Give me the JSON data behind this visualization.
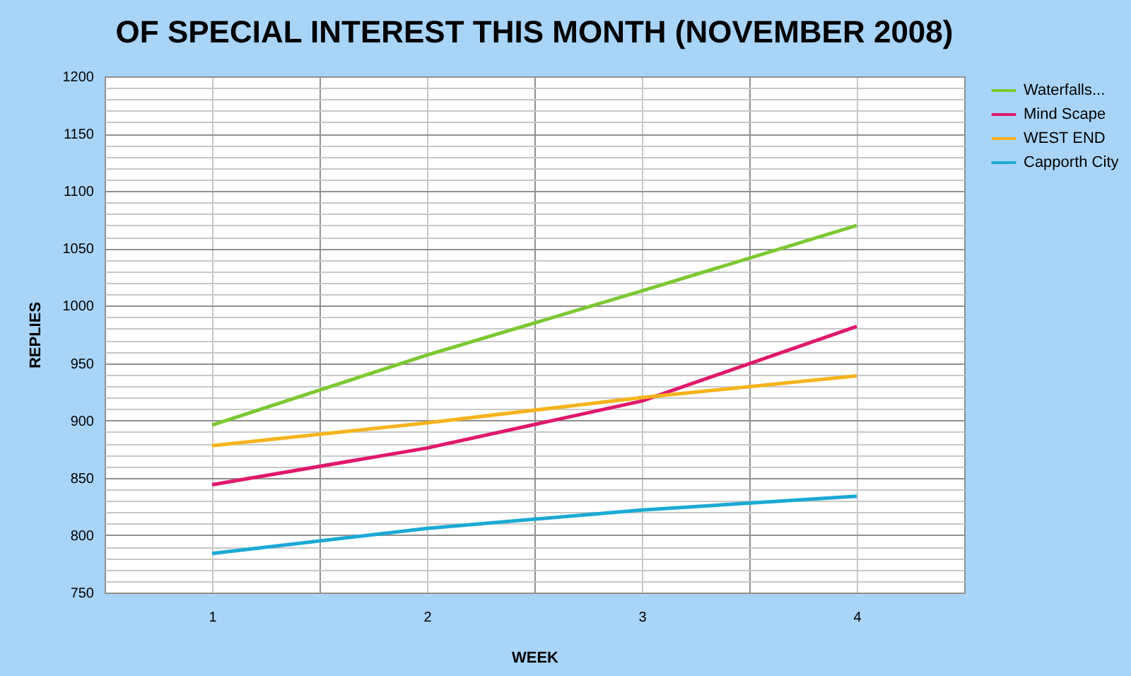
{
  "chart_data": {
    "type": "line",
    "title": "OF SPECIAL INTEREST THIS MONTH (NOVEMBER 2008)",
    "xlabel": "WEEK",
    "ylabel": "REPLIES",
    "x": [
      1,
      2,
      3,
      4
    ],
    "xlim": [
      0.5,
      4.5
    ],
    "xticks": [
      {
        "value": 0.5,
        "label": null
      },
      1,
      {
        "value": 1.5,
        "label": null
      },
      2,
      {
        "value": 2.5,
        "label": null
      },
      3,
      {
        "value": 3.5,
        "label": null
      },
      4,
      {
        "value": 4.5,
        "label": null
      }
    ],
    "ylim": [
      750,
      1200
    ],
    "yticks": [
      750,
      {
        "value": 760,
        "label": null
      },
      {
        "value": 770,
        "label": null
      },
      {
        "value": 780,
        "label": null
      },
      {
        "value": 790,
        "label": null
      },
      800,
      {
        "value": 810,
        "label": null
      },
      {
        "value": 820,
        "label": null
      },
      {
        "value": 830,
        "label": null
      },
      {
        "value": 840,
        "label": null
      },
      850,
      {
        "value": 860,
        "label": null
      },
      {
        "value": 870,
        "label": null
      },
      {
        "value": 880,
        "label": null
      },
      {
        "value": 890,
        "label": null
      },
      900,
      {
        "value": 910,
        "label": null
      },
      {
        "value": 920,
        "label": null
      },
      {
        "value": 930,
        "label": null
      },
      {
        "value": 940,
        "label": null
      },
      950,
      {
        "value": 960,
        "label": null
      },
      {
        "value": 970,
        "label": null
      },
      {
        "value": 980,
        "label": null
      },
      {
        "value": 990,
        "label": null
      },
      1000,
      {
        "value": 1010,
        "label": null
      },
      {
        "value": 1020,
        "label": null
      },
      {
        "value": 1030,
        "label": null
      },
      {
        "value": 1040,
        "label": null
      },
      1050,
      {
        "value": 1060,
        "label": null
      },
      {
        "value": 1070,
        "label": null
      },
      {
        "value": 1080,
        "label": null
      },
      {
        "value": 1090,
        "label": null
      },
      1100,
      {
        "value": 1110,
        "label": null
      },
      {
        "value": 1120,
        "label": null
      },
      {
        "value": 1130,
        "label": null
      },
      {
        "value": 1140,
        "label": null
      },
      1150,
      {
        "value": 1160,
        "label": null
      },
      {
        "value": 1170,
        "label": null
      },
      {
        "value": 1180,
        "label": null
      },
      {
        "value": 1190,
        "label": null
      },
      1200
    ],
    "grid": true,
    "legend": "right",
    "marker": "none",
    "line_style": "solid",
    "series": [
      {
        "name": "Waterfalls...",
        "color": "#7dc832",
        "values": [
          896,
          957,
          1013,
          1070
        ]
      },
      {
        "name": "Mind Scape",
        "color": "#e0186c",
        "values": [
          844,
          876,
          917,
          982
        ]
      },
      {
        "name": "WEST END",
        "color": "#f5b31c",
        "values": [
          878,
          898,
          920,
          939
        ]
      },
      {
        "name": "Capporth City",
        "color": "#1ba9d6",
        "values": [
          784,
          806,
          822,
          834
        ]
      }
    ]
  }
}
